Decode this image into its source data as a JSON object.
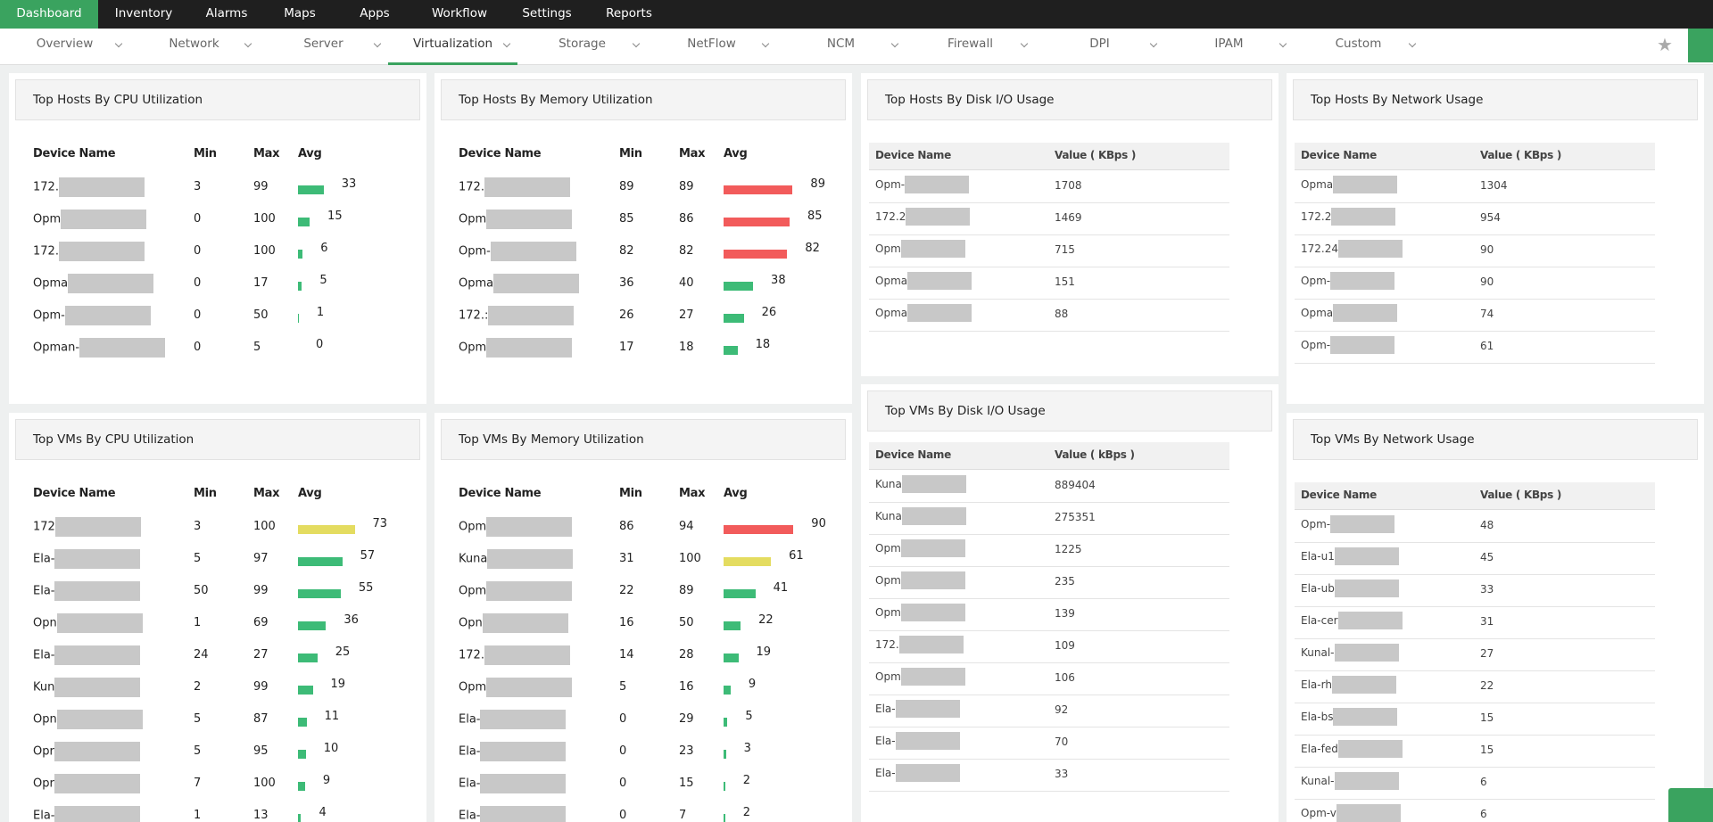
{
  "nav": {
    "tabs": [
      "Dashboard",
      "Inventory",
      "Alarms",
      "Maps",
      "Apps",
      "Workflow",
      "Settings",
      "Reports"
    ],
    "subtabs": [
      "Overview",
      "Network",
      "Server",
      "Virtualization",
      "Storage",
      "NetFlow",
      "NCM",
      "Firewall",
      "DPI",
      "IPAM",
      "Custom"
    ]
  },
  "widgets": [
    {
      "title": "Top Hosts By CPU Utilization",
      "columns": [
        "Device Name",
        "Min",
        "Max",
        "Avg"
      ],
      "rows": [
        {
          "device": "172.",
          "min": 3,
          "max": 99,
          "avg": 33,
          "color": "#3dbb77"
        },
        {
          "device": "Opm",
          "min": 0,
          "max": 100,
          "avg": 15,
          "color": "#3dbb77"
        },
        {
          "device": "172.",
          "min": 0,
          "max": 100,
          "avg": 6,
          "color": "#3dbb77"
        },
        {
          "device": "Opma",
          "min": 0,
          "max": 17,
          "avg": 5,
          "color": "#3dbb77"
        },
        {
          "device": "Opm-",
          "min": 0,
          "max": 50,
          "avg": 1,
          "color": "#3dbb77"
        },
        {
          "device": "Opman-",
          "min": 0,
          "max": 5,
          "avg": 0,
          "color": "#3dbb77"
        }
      ]
    },
    {
      "title": "Top Hosts By Memory Utilization",
      "columns": [
        "Device Name",
        "Min",
        "Max",
        "Avg"
      ],
      "rows": [
        {
          "device": "172.",
          "min": 89,
          "max": 89,
          "avg": 89,
          "color": "#f25b5b"
        },
        {
          "device": "Opm",
          "min": 85,
          "max": 86,
          "avg": 85,
          "color": "#f25b5b"
        },
        {
          "device": "Opm-",
          "min": 82,
          "max": 82,
          "avg": 82,
          "color": "#f25b5b"
        },
        {
          "device": "Opma",
          "min": 36,
          "max": 40,
          "avg": 38,
          "color": "#3dbb77"
        },
        {
          "device": "172.:",
          "min": 26,
          "max": 27,
          "avg": 26,
          "color": "#3dbb77"
        },
        {
          "device": "Opm",
          "min": 17,
          "max": 18,
          "avg": 18,
          "color": "#3dbb77"
        }
      ]
    },
    {
      "title": "Top Hosts By Disk I/O Usage",
      "columns": [
        "Device Name",
        "Value ( KBps )"
      ],
      "rows": [
        {
          "device": "Opm-",
          "value": 1708
        },
        {
          "device": "172.2",
          "value": 1469
        },
        {
          "device": "Opm",
          "value": 715
        },
        {
          "device": "Opma",
          "value": 151
        },
        {
          "device": "Opma",
          "value": 88
        }
      ]
    },
    {
      "title": "Top Hosts By Network Usage",
      "columns": [
        "Device Name",
        "Value ( KBps )"
      ],
      "rows": [
        {
          "device": "Opma",
          "value": 1304
        },
        {
          "device": "172.2",
          "value": 954
        },
        {
          "device": "172.24",
          "value": 90
        },
        {
          "device": "Opm-",
          "value": 90
        },
        {
          "device": "Opma",
          "value": 74
        },
        {
          "device": "Opm-",
          "value": 61
        }
      ]
    },
    {
      "title": "Top VMs By CPU Utilization",
      "columns": [
        "Device Name",
        "Min",
        "Max",
        "Avg"
      ],
      "rows": [
        {
          "device": "172",
          "min": 3,
          "max": 100,
          "avg": 73,
          "color": "#e4dc60"
        },
        {
          "device": "Ela-",
          "min": 5,
          "max": 97,
          "avg": 57,
          "color": "#3dbb77"
        },
        {
          "device": "Ela-",
          "min": 50,
          "max": 99,
          "avg": 55,
          "color": "#3dbb77"
        },
        {
          "device": "Opn",
          "min": 1,
          "max": 69,
          "avg": 36,
          "color": "#3dbb77"
        },
        {
          "device": "Ela-",
          "min": 24,
          "max": 27,
          "avg": 25,
          "color": "#3dbb77"
        },
        {
          "device": "Kun",
          "min": 2,
          "max": 99,
          "avg": 19,
          "color": "#3dbb77"
        },
        {
          "device": "Opn",
          "min": 5,
          "max": 87,
          "avg": 11,
          "color": "#3dbb77"
        },
        {
          "device": "Opr",
          "min": 5,
          "max": 95,
          "avg": 10,
          "color": "#3dbb77"
        },
        {
          "device": "Opr",
          "min": 7,
          "max": 100,
          "avg": 9,
          "color": "#3dbb77"
        },
        {
          "device": "Ela-",
          "min": 1,
          "max": 13,
          "avg": 4,
          "color": "#3dbb77"
        }
      ]
    },
    {
      "title": "Top VMs By Memory Utilization",
      "columns": [
        "Device Name",
        "Min",
        "Max",
        "Avg"
      ],
      "rows": [
        {
          "device": "Opm",
          "min": 86,
          "max": 94,
          "avg": 90,
          "color": "#f25b5b"
        },
        {
          "device": "Kuna",
          "min": 31,
          "max": 100,
          "avg": 61,
          "color": "#e4dc60"
        },
        {
          "device": "Opm",
          "min": 22,
          "max": 89,
          "avg": 41,
          "color": "#3dbb77"
        },
        {
          "device": "Opn",
          "min": 16,
          "max": 50,
          "avg": 22,
          "color": "#3dbb77"
        },
        {
          "device": "172.",
          "min": 14,
          "max": 28,
          "avg": 19,
          "color": "#3dbb77"
        },
        {
          "device": "Opm",
          "min": 5,
          "max": 16,
          "avg": 9,
          "color": "#3dbb77"
        },
        {
          "device": "Ela-",
          "min": 0,
          "max": 29,
          "avg": 5,
          "color": "#3dbb77"
        },
        {
          "device": "Ela-",
          "min": 0,
          "max": 23,
          "avg": 3,
          "color": "#3dbb77"
        },
        {
          "device": "Ela-",
          "min": 0,
          "max": 15,
          "avg": 2,
          "color": "#3dbb77"
        },
        {
          "device": "Ela-",
          "min": 0,
          "max": 7,
          "avg": 2,
          "color": "#3dbb77"
        }
      ]
    },
    {
      "title": "Top VMs By Disk I/O Usage",
      "columns": [
        "Device Name",
        "Value ( kBps )"
      ],
      "rows": [
        {
          "device": "Kuna",
          "value": 889404
        },
        {
          "device": "Kuna",
          "value": 275351
        },
        {
          "device": "Opm",
          "value": 1225
        },
        {
          "device": "Opm",
          "value": 235
        },
        {
          "device": "Opm",
          "value": 139
        },
        {
          "device": "172.",
          "value": 109
        },
        {
          "device": "Opm",
          "value": 106
        },
        {
          "device": "Ela-",
          "value": 92
        },
        {
          "device": "Ela-",
          "value": 70
        },
        {
          "device": "Ela-",
          "value": 33
        }
      ]
    },
    {
      "title": "Top VMs By Network Usage",
      "columns": [
        "Device Name",
        "Value ( KBps )"
      ],
      "rows": [
        {
          "device": "Opm-",
          "value": 48
        },
        {
          "device": "Ela-u1",
          "value": 45
        },
        {
          "device": "Ela-ub",
          "value": 33
        },
        {
          "device": "Ela-cer",
          "value": 31
        },
        {
          "device": "Kunal-",
          "value": 27
        },
        {
          "device": "Ela-rh",
          "value": 22
        },
        {
          "device": "Ela-bs",
          "value": 15
        },
        {
          "device": "Ela-fed",
          "value": 15
        },
        {
          "device": "Kunal-",
          "value": 6
        },
        {
          "device": "Opm-v",
          "value": 6
        }
      ]
    }
  ]
}
